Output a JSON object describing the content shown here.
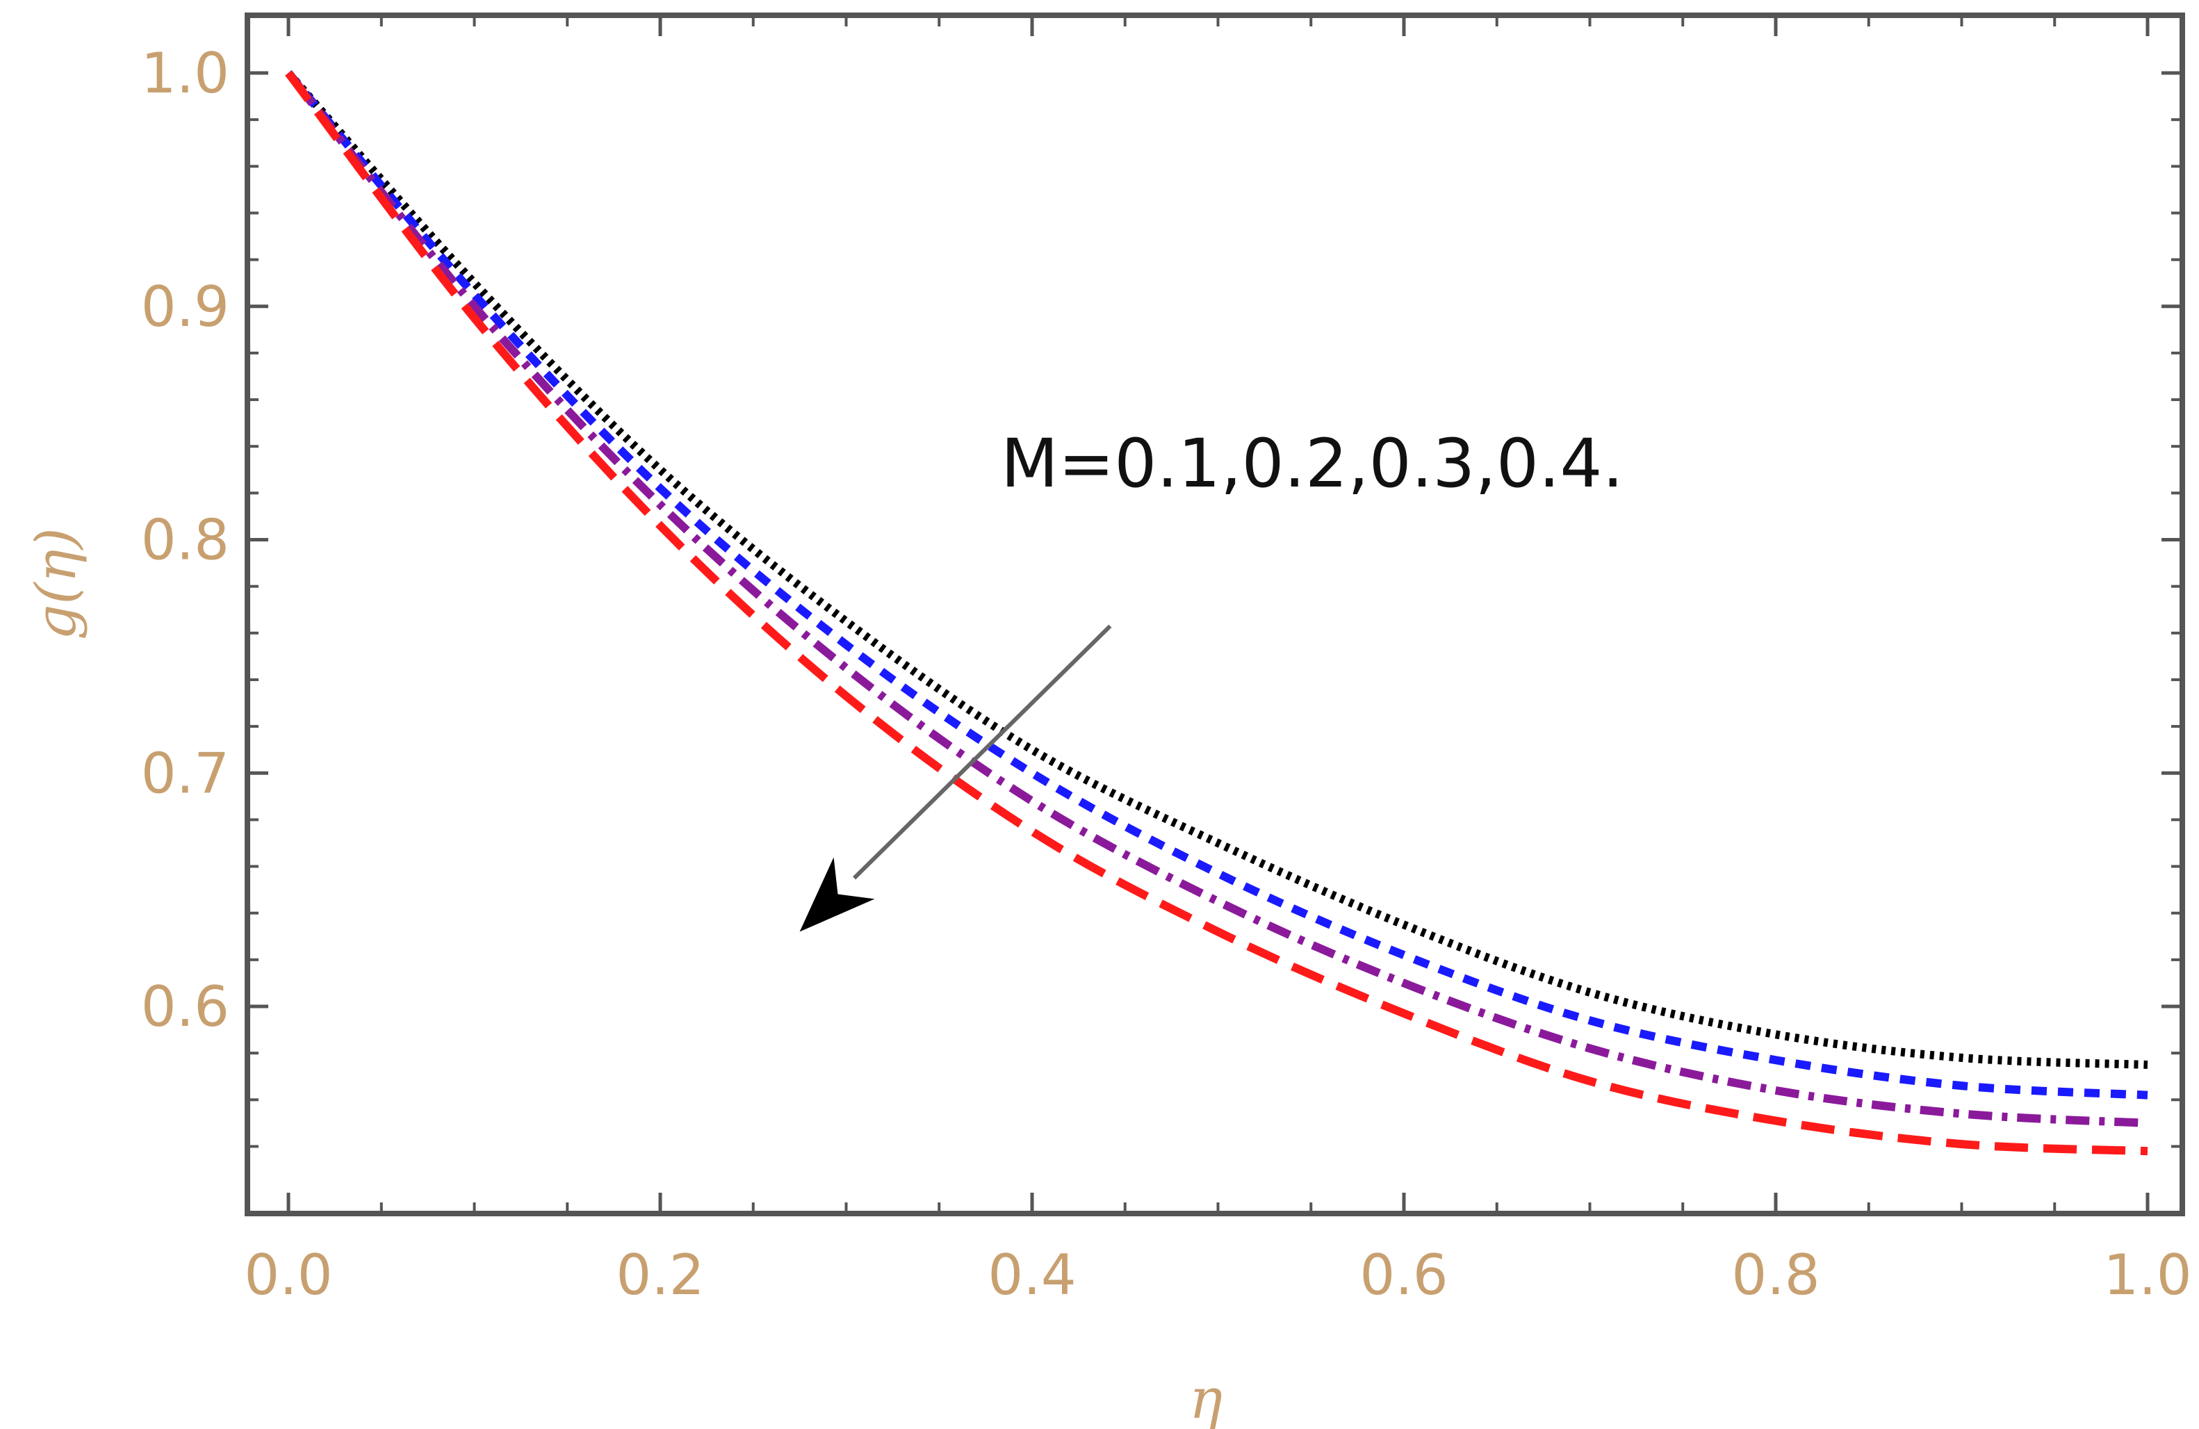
{
  "chart_data": {
    "type": "line",
    "xlabel": "η",
    "ylabel": "g(η)",
    "xlim": [
      0.0,
      1.0
    ],
    "ylim": [
      0.53,
      1.02
    ],
    "xticks": [
      "0.0",
      "0.2",
      "0.4",
      "0.6",
      "0.8",
      "1.0"
    ],
    "yticks": [
      "0.6",
      "0.7",
      "0.8",
      "0.9",
      "1.0"
    ],
    "grid": false,
    "x": [
      0.0,
      0.1,
      0.2,
      0.3,
      0.4,
      0.5,
      0.6,
      0.7,
      0.8,
      0.9,
      1.0
    ],
    "series": [
      {
        "color": "#000000",
        "dash": "dotted",
        "values": [
          1.0,
          0.91,
          0.83,
          0.765,
          0.71,
          0.67,
          0.635,
          0.606,
          0.588,
          0.578,
          0.575
        ]
      },
      {
        "color": "#1a1aff",
        "dash": "dashed-short",
        "values": [
          1.0,
          0.905,
          0.822,
          0.755,
          0.7,
          0.657,
          0.622,
          0.594,
          0.577,
          0.566,
          0.562
        ]
      },
      {
        "color": "#8b1a9b",
        "dash": "dashdot",
        "values": [
          1.0,
          0.9,
          0.815,
          0.745,
          0.688,
          0.645,
          0.61,
          0.582,
          0.564,
          0.554,
          0.55
        ]
      },
      {
        "color": "#ff1a1a",
        "dash": "dashed-long",
        "values": [
          1.0,
          0.895,
          0.806,
          0.733,
          0.675,
          0.632,
          0.597,
          0.568,
          0.551,
          0.541,
          0.538
        ]
      }
    ],
    "annotation": {
      "text": "M=0.1,0.2,0.3,0.4.",
      "arrow_from": [
        0.442,
        0.763
      ],
      "arrow_to": [
        0.275,
        0.632
      ]
    }
  }
}
